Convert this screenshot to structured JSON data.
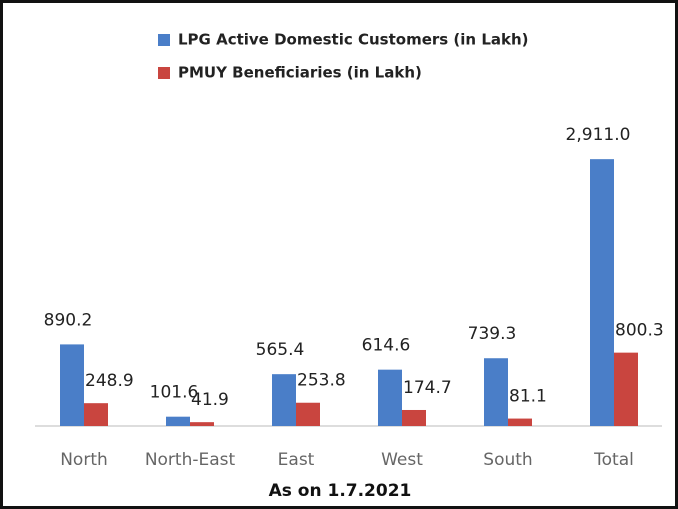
{
  "chart_data": {
    "type": "bar",
    "categories": [
      "North",
      "North-East",
      "East",
      "West",
      "South",
      "Total"
    ],
    "series": [
      {
        "name": "LPG Active Domestic Customers (in Lakh)",
        "color": "#4a7ec8",
        "values": [
          890.2,
          101.6,
          565.4,
          614.6,
          739.3,
          2911.0
        ],
        "value_labels": [
          "890.2",
          "101.6",
          "565.4",
          "614.6",
          "739.3",
          "2,911.0"
        ]
      },
      {
        "name": "PMUY Beneficiaries (in Lakh)",
        "color": "#c9453f",
        "values": [
          248.9,
          41.9,
          253.8,
          174.7,
          81.1,
          800.3
        ],
        "value_labels": [
          "248.9",
          "41.9",
          "253.8",
          "174.7",
          "81.1",
          "800.3"
        ]
      }
    ],
    "x_label": "As on 1.7.2021",
    "ylim": [
      0,
      3000
    ]
  }
}
